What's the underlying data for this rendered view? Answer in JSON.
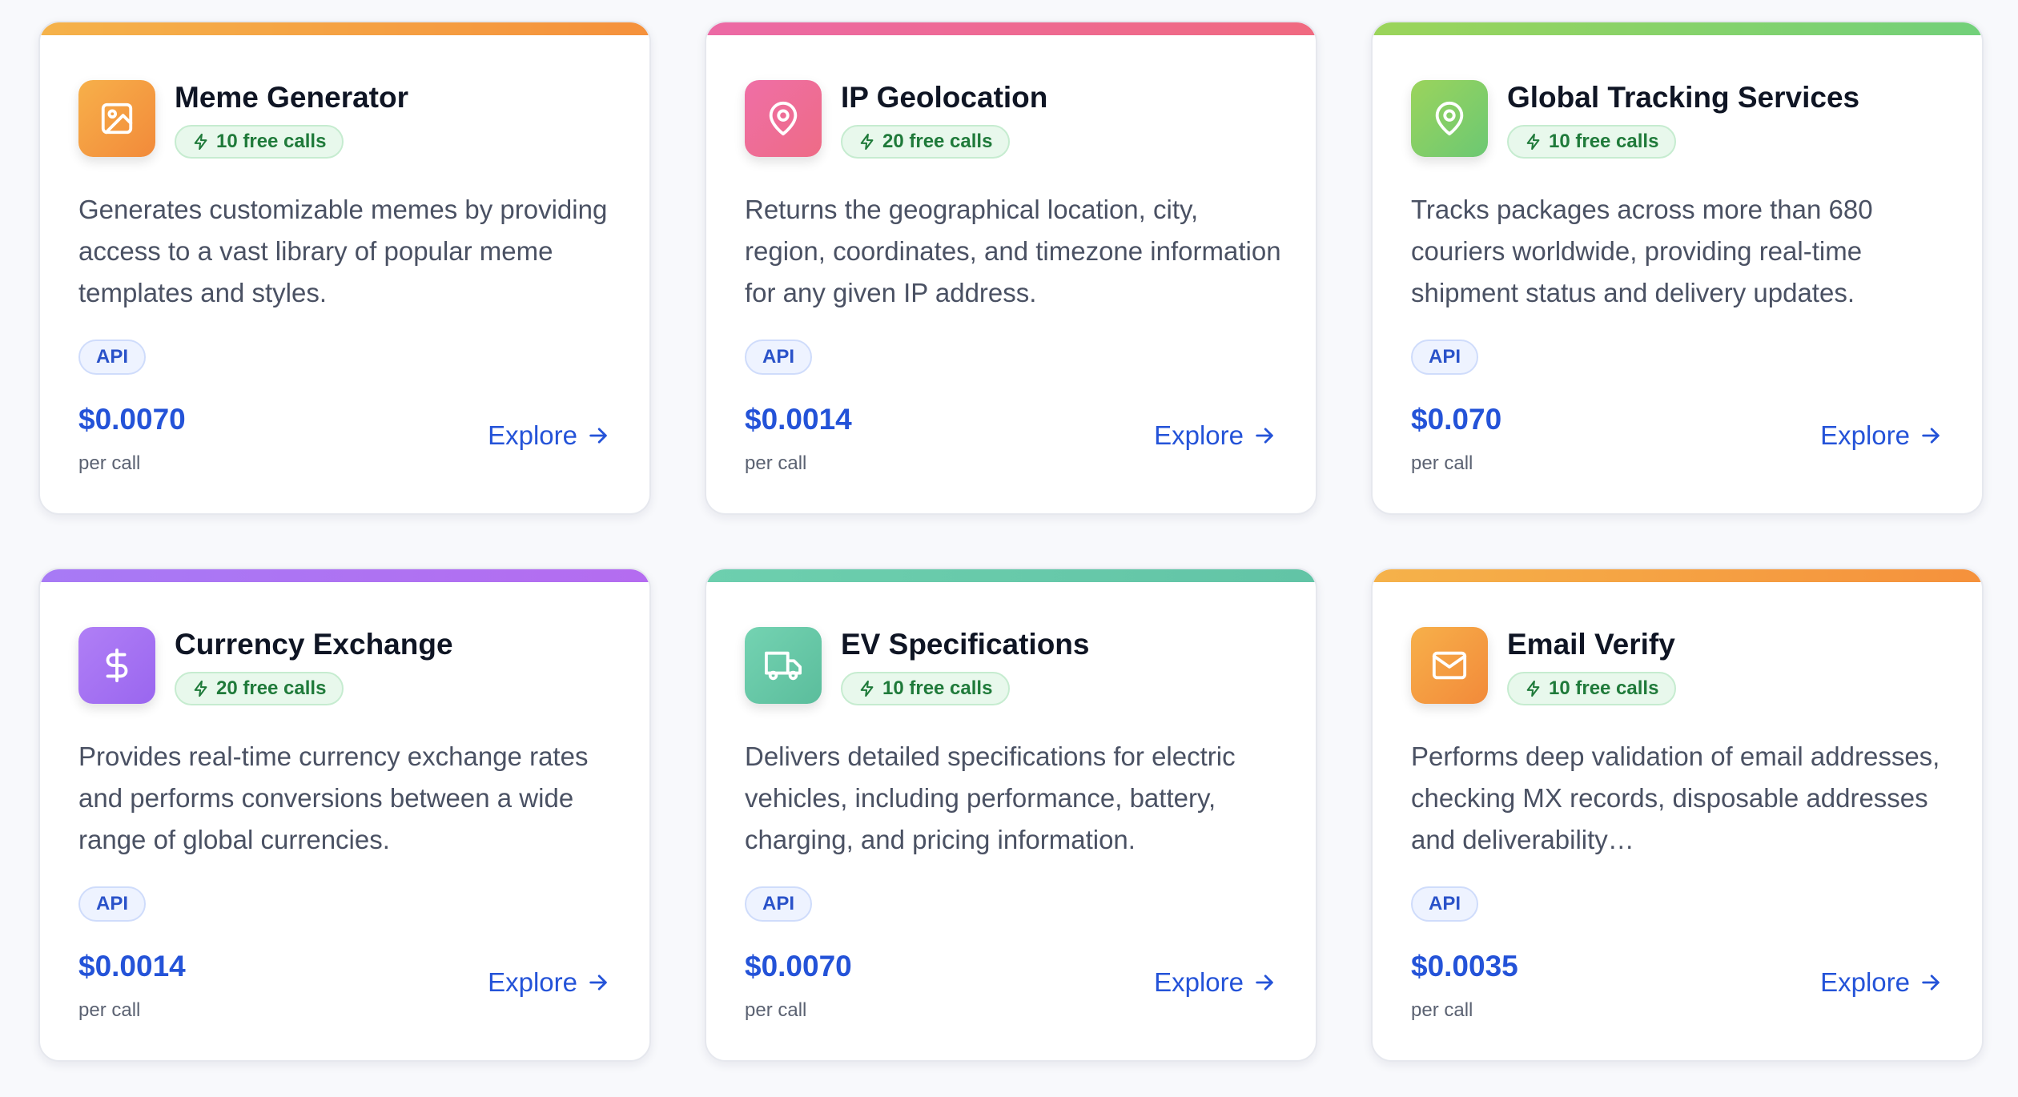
{
  "cards": [
    {
      "title": "Meme Generator",
      "free_calls": "10 free calls",
      "description": "Generates customizable memes by providing access to a vast library of popular meme templates and styles.",
      "tag": "API",
      "price": "$0.0070",
      "price_unit": "per call",
      "explore_label": "Explore",
      "icon": "image-icon",
      "accent": [
        "#f5b24a",
        "#f5913c"
      ],
      "icon_bg": [
        "#f7b04a",
        "#f28a3a"
      ]
    },
    {
      "title": "IP Geolocation",
      "free_calls": "20 free calls",
      "description": "Returns the geographical location, city, region, coordinates, and timezone information for any given IP address.",
      "tag": "API",
      "price": "$0.0014",
      "price_unit": "per call",
      "explore_label": "Explore",
      "icon": "map-pin-icon",
      "accent": [
        "#ec6aa5",
        "#f06a80"
      ],
      "icon_bg": [
        "#ef6fa6",
        "#ee6b86"
      ]
    },
    {
      "title": "Global Tracking Services",
      "free_calls": "10 free calls",
      "description": "Tracks packages across more than 680 couriers worldwide, providing real-time shipment status and delivery updates.",
      "tag": "API",
      "price": "$0.070",
      "price_unit": "per call",
      "explore_label": "Explore",
      "icon": "map-pin-icon",
      "accent": [
        "#9bd45a",
        "#72d07a"
      ],
      "icon_bg": [
        "#9bd45c",
        "#6cc873"
      ]
    },
    {
      "title": "Currency Exchange",
      "free_calls": "20 free calls",
      "description": "Provides real-time currency exchange rates and performs conversions between a wide range of global currencies.",
      "tag": "API",
      "price": "$0.0014",
      "price_unit": "per call",
      "explore_label": "Explore",
      "icon": "dollar-icon",
      "accent": [
        "#a77af5",
        "#b46cf0"
      ],
      "icon_bg": [
        "#b07ff6",
        "#9a66ef"
      ]
    },
    {
      "title": "EV Specifications",
      "free_calls": "10 free calls",
      "description": "Delivers detailed specifications for electric vehicles, including performance, battery, charging, and pricing information.",
      "tag": "API",
      "price": "$0.0070",
      "price_unit": "per call",
      "explore_label": "Explore",
      "icon": "truck-icon",
      "accent": [
        "#6dcfae",
        "#62c4a6"
      ],
      "icon_bg": [
        "#74d3b2",
        "#5bbd9c"
      ]
    },
    {
      "title": "Email Verify",
      "free_calls": "10 free calls",
      "description": "Performs deep validation of email addresses, checking MX records, disposable addresses and deliverability…",
      "tag": "API",
      "price": "$0.0035",
      "price_unit": "per call",
      "explore_label": "Explore",
      "icon": "mail-icon",
      "accent": [
        "#f5b24a",
        "#f5913c"
      ],
      "icon_bg": [
        "#f7b04a",
        "#f28a3a"
      ]
    }
  ]
}
